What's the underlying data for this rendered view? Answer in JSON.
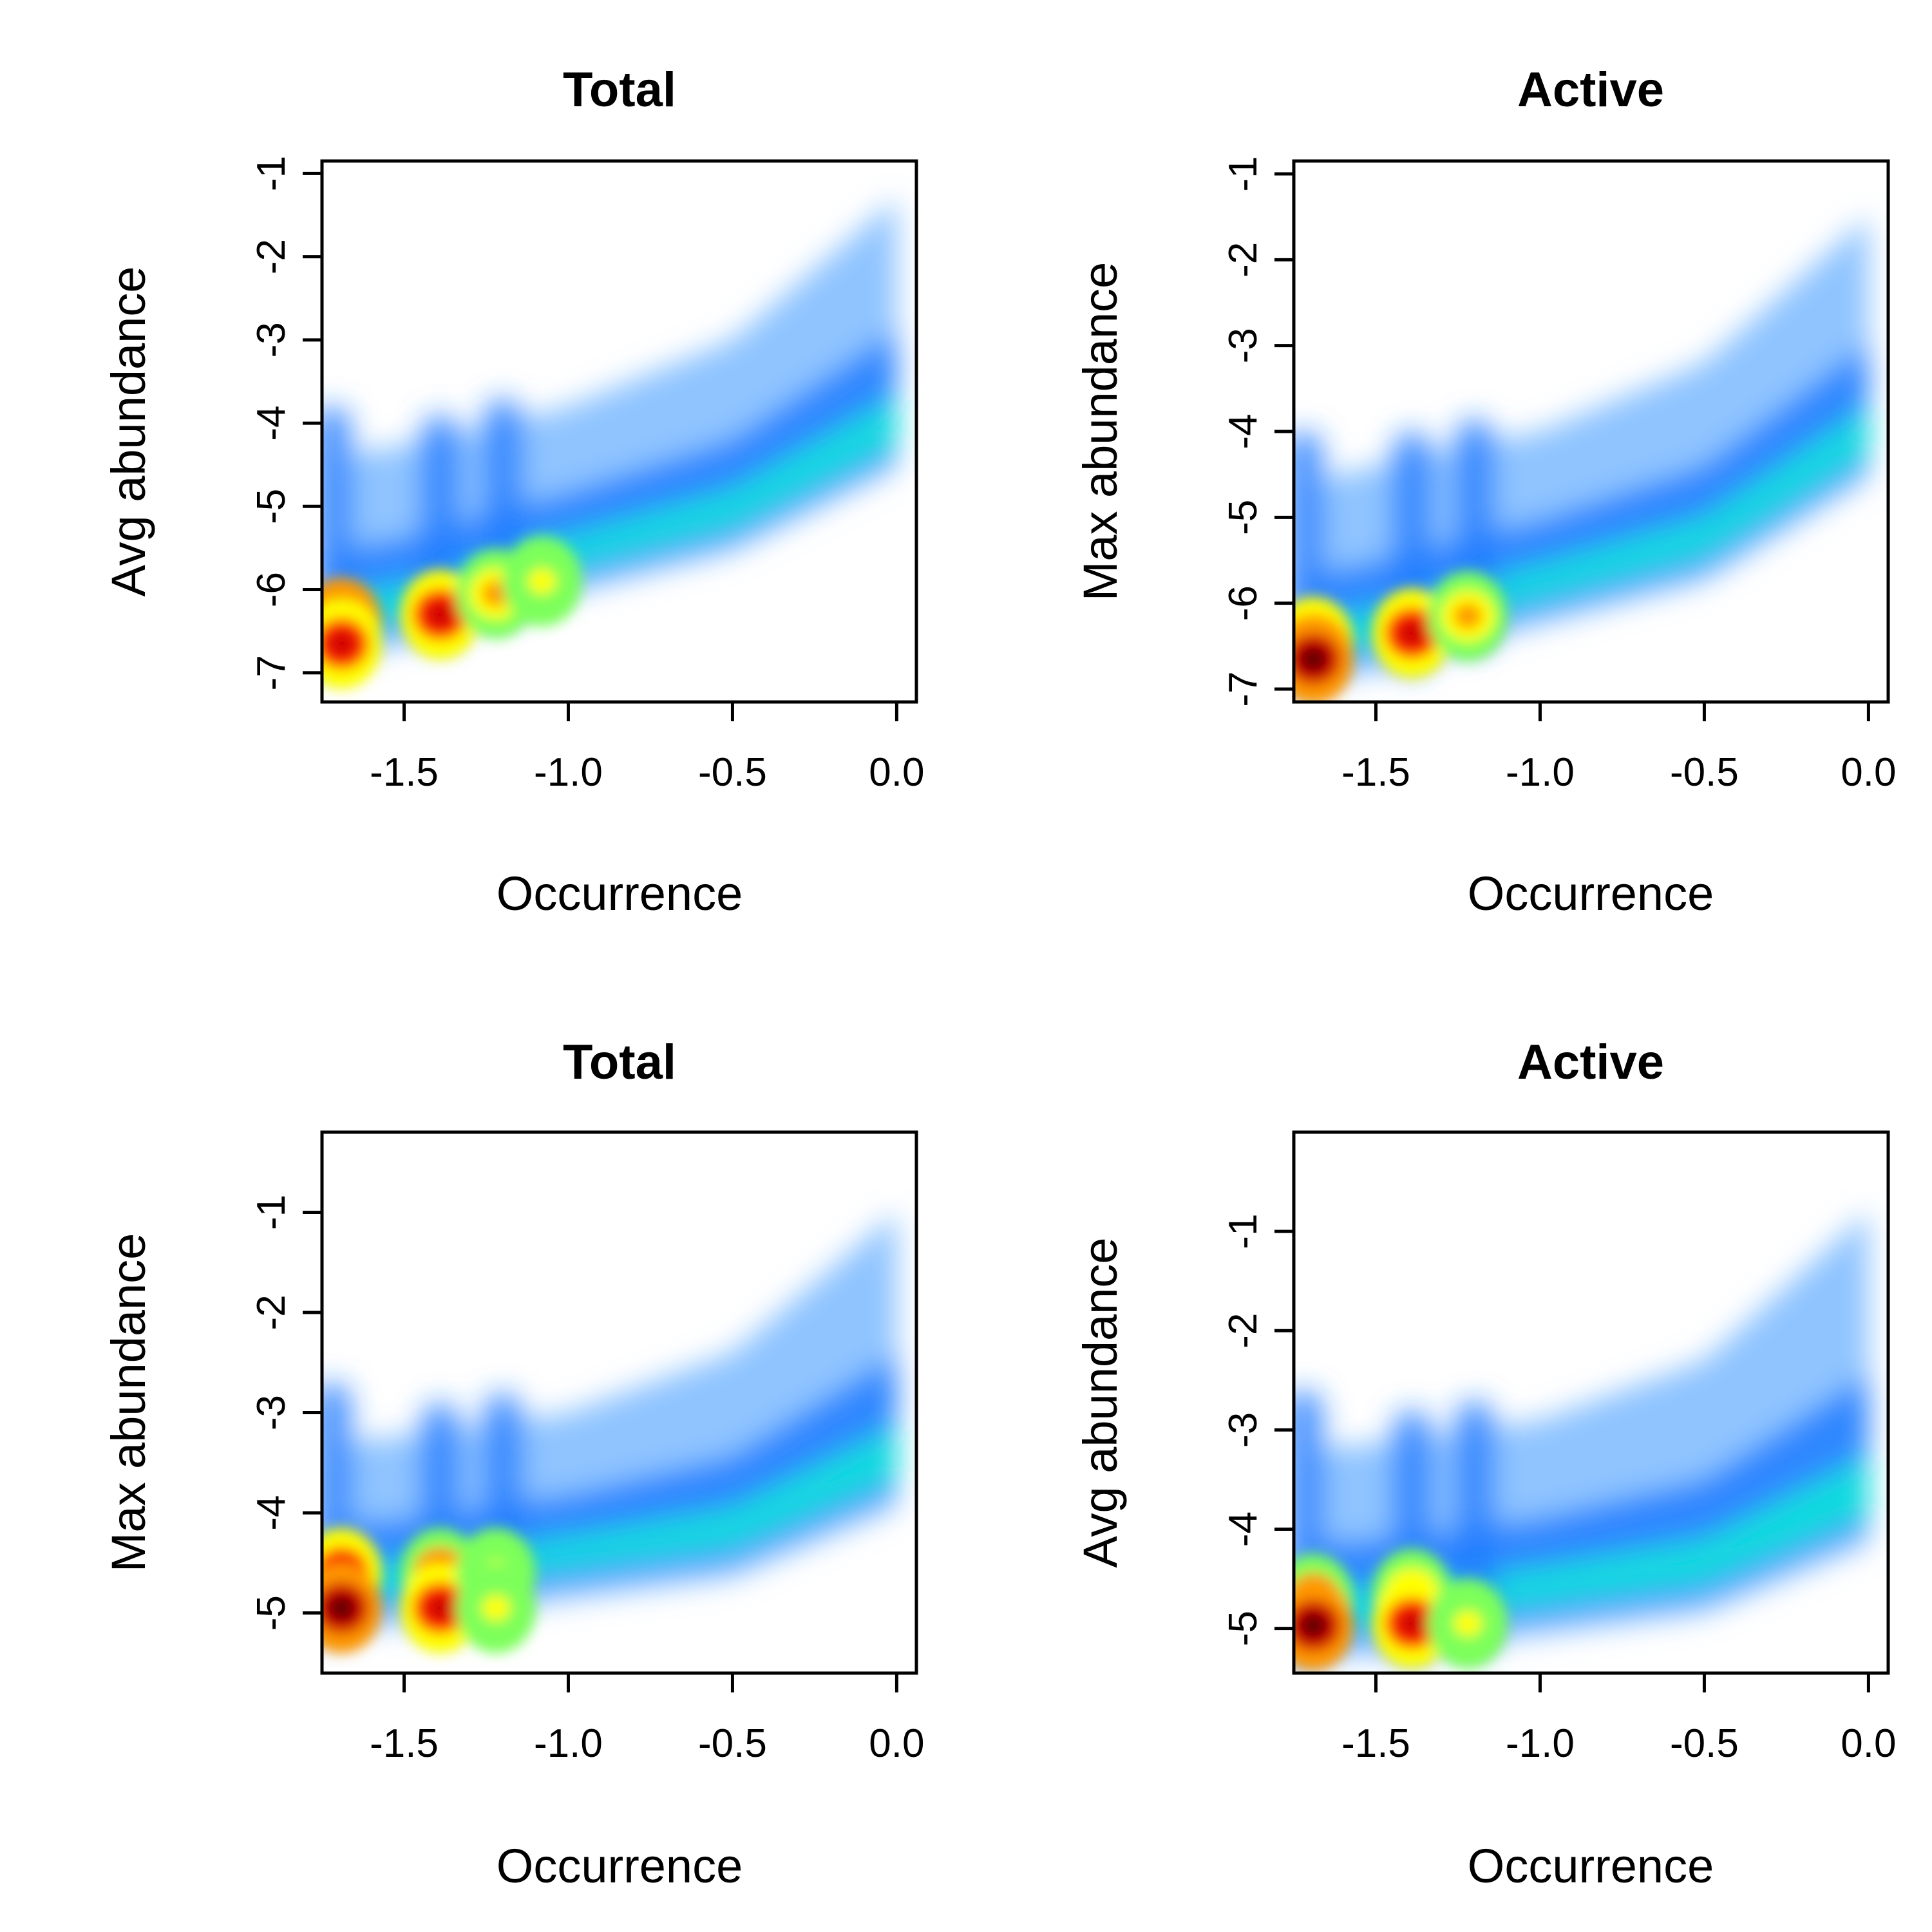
{
  "colormap": [
    "#ffffff",
    "#cfe3ff",
    "#6ab0ff",
    "#1f7bff",
    "#00c8ff",
    "#00ffd0",
    "#7dff5a",
    "#ffff00",
    "#ff9800",
    "#ff2a00",
    "#d00000",
    "#600000"
  ],
  "chart_data": [
    {
      "type": "heatmap",
      "title": "Total",
      "xlabel": "Occurrence",
      "ylabel": "Avg abundance",
      "xlim": [
        -1.75,
        0.06
      ],
      "ylim": [
        -7.35,
        -0.85
      ],
      "xticks": [
        -1.5,
        -1.0,
        -0.5,
        0.0
      ],
      "xtick_labels": [
        "-1.5",
        "-1.0",
        "-0.5",
        "0.0"
      ],
      "yticks": [
        -7,
        -6,
        -5,
        -4,
        -3,
        -2,
        -1
      ],
      "ytick_labels": [
        "-7",
        "-6",
        "-5",
        "-4",
        "-3",
        "-2",
        "-1"
      ],
      "ridge": {
        "x": [
          -1.72,
          -1.39,
          -1.2,
          -0.5,
          0.0
        ],
        "y": [
          -6.5,
          -6.2,
          -5.9,
          -5.2,
          -4.2
        ]
      },
      "top_edge": {
        "x": [
          -1.72,
          -1.39,
          -1.0,
          -0.5,
          0.0
        ],
        "y": [
          -4.4,
          -4.2,
          -3.8,
          -3.0,
          -1.3
        ]
      },
      "hotspots": [
        {
          "x": -1.69,
          "y": -6.4,
          "density": 1.0
        },
        {
          "x": -1.69,
          "y": -6.65,
          "density": 0.95
        },
        {
          "x": -1.39,
          "y": -6.3,
          "density": 0.95
        },
        {
          "x": -1.22,
          "y": -6.05,
          "density": 0.75
        },
        {
          "x": -1.08,
          "y": -5.9,
          "density": 0.6
        }
      ]
    },
    {
      "type": "heatmap",
      "title": "Active",
      "xlabel": "Occurrence",
      "ylabel": "Max abundance",
      "xlim": [
        -1.75,
        0.06
      ],
      "ylim": [
        -7.15,
        -0.85
      ],
      "xticks": [
        -1.5,
        -1.0,
        -0.5,
        0.0
      ],
      "xtick_labels": [
        "-1.5",
        "-1.0",
        "-0.5",
        "0.0"
      ],
      "yticks": [
        -7,
        -6,
        -5,
        -4,
        -3,
        -2,
        -1
      ],
      "ytick_labels": [
        "-7",
        "-6",
        "-5",
        "-4",
        "-3",
        "-2",
        "-1"
      ],
      "ridge": {
        "x": [
          -1.72,
          -1.39,
          -1.2,
          -0.5,
          0.0
        ],
        "y": [
          -6.6,
          -6.35,
          -6.1,
          -5.4,
          -4.2
        ]
      },
      "top_edge": {
        "x": [
          -1.72,
          -1.39,
          -1.0,
          -0.5,
          0.0
        ],
        "y": [
          -4.6,
          -4.3,
          -4.0,
          -3.2,
          -1.5
        ]
      },
      "hotspots": [
        {
          "x": -1.69,
          "y": -6.45,
          "density": 0.9
        },
        {
          "x": -1.69,
          "y": -6.65,
          "density": 1.0
        },
        {
          "x": -1.39,
          "y": -6.35,
          "density": 0.9
        },
        {
          "x": -1.22,
          "y": -6.15,
          "density": 0.7
        }
      ]
    },
    {
      "type": "heatmap",
      "title": "Total",
      "xlabel": "Occurrence",
      "ylabel": "Max abundance",
      "xlim": [
        -1.75,
        0.06
      ],
      "ylim": [
        -5.6,
        -0.2
      ],
      "xticks": [
        -1.5,
        -1.0,
        -0.5,
        0.0
      ],
      "xtick_labels": [
        "-1.5",
        "-1.0",
        "-0.5",
        "0.0"
      ],
      "yticks": [
        -5,
        -4,
        -3,
        -2,
        -1
      ],
      "ytick_labels": [
        "-5",
        "-4",
        "-3",
        "-2",
        "-1"
      ],
      "ridge": {
        "x": [
          -1.72,
          -1.39,
          -1.2,
          -0.5,
          0.0
        ],
        "y": [
          -4.8,
          -4.75,
          -4.6,
          -4.3,
          -3.6
        ]
      },
      "top_edge": {
        "x": [
          -1.72,
          -1.39,
          -1.0,
          -0.5,
          0.0
        ],
        "y": [
          -3.3,
          -3.2,
          -3.0,
          -2.4,
          -1.0
        ]
      },
      "hotspots": [
        {
          "x": -1.69,
          "y": -4.6,
          "density": 0.95
        },
        {
          "x": -1.69,
          "y": -4.95,
          "density": 1.0
        },
        {
          "x": -1.39,
          "y": -4.6,
          "density": 0.85
        },
        {
          "x": -1.39,
          "y": -4.95,
          "density": 0.9
        },
        {
          "x": -1.22,
          "y": -4.6,
          "density": 0.65
        },
        {
          "x": -1.22,
          "y": -4.95,
          "density": 0.6
        }
      ]
    },
    {
      "type": "heatmap",
      "title": "Active",
      "xlabel": "Occurrence",
      "ylabel": "Avg abundance",
      "xlim": [
        -1.75,
        0.06
      ],
      "ylim": [
        -5.45,
        0.0
      ],
      "xticks": [
        -1.5,
        -1.0,
        -0.5,
        0.0
      ],
      "xtick_labels": [
        "-1.5",
        "-1.0",
        "-0.5",
        "0.0"
      ],
      "yticks": [
        -5,
        -4,
        -3,
        -2,
        -1
      ],
      "ytick_labels": [
        "-5",
        "-4",
        "-3",
        "-2",
        "-1"
      ],
      "ridge": {
        "x": [
          -1.72,
          -1.39,
          -1.2,
          -0.5,
          0.0
        ],
        "y": [
          -4.95,
          -4.9,
          -4.8,
          -4.5,
          -3.8
        ]
      },
      "top_edge": {
        "x": [
          -1.72,
          -1.39,
          -1.0,
          -0.5,
          0.0
        ],
        "y": [
          -3.2,
          -3.1,
          -2.9,
          -2.3,
          -0.8
        ]
      },
      "hotspots": [
        {
          "x": -1.69,
          "y": -4.7,
          "density": 0.85
        },
        {
          "x": -1.69,
          "y": -4.97,
          "density": 1.0
        },
        {
          "x": -1.39,
          "y": -4.65,
          "density": 0.7
        },
        {
          "x": -1.39,
          "y": -4.95,
          "density": 0.9
        },
        {
          "x": -1.22,
          "y": -4.95,
          "density": 0.6
        }
      ]
    }
  ]
}
